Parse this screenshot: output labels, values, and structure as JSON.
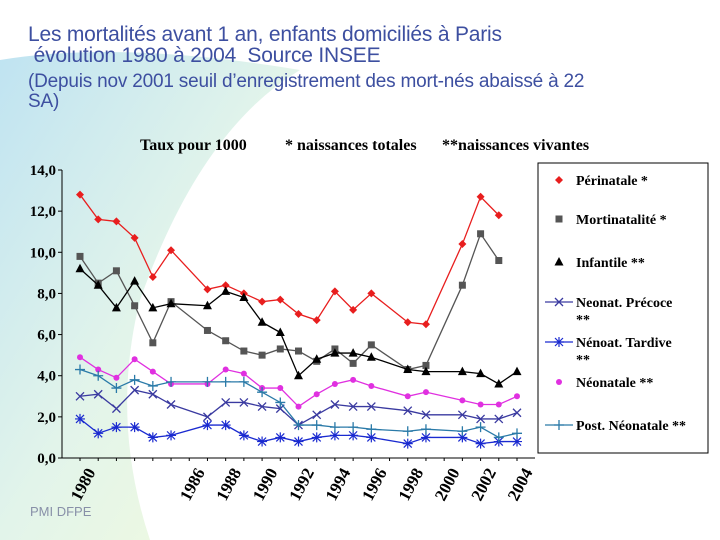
{
  "slide": {
    "title_line1": "Les mortalités avant 1 an, enfants domiciliés à Paris",
    "title_line2": " évolution 1980 à 2004  Source INSEE",
    "title_line3": "(Depuis nov 2001 seuil d’enregistrement des mort-nés abaissé à 22",
    "title_line4": "SA)",
    "footer": "PMI DFPE"
  },
  "chart_data": {
    "type": "line",
    "header_rate": "Taux pour 1000",
    "header_total": "* naissances totales",
    "header_live": "**naissances vivantes",
    "x": [
      1980,
      1981,
      1982,
      1983,
      1984,
      1985,
      1986,
      1987,
      1988,
      1989,
      1990,
      1991,
      1992,
      1993,
      1994,
      1995,
      1996,
      1997,
      1998,
      1999,
      2000,
      2001,
      2002,
      2003,
      2004
    ],
    "x_tick_labels": [
      "1980",
      "1986",
      "1988",
      "1990",
      "1992",
      "1994",
      "1996",
      "1998",
      "2000",
      "2002",
      "2004"
    ],
    "x_tick_values": [
      1980,
      1986,
      1988,
      1990,
      1992,
      1994,
      1996,
      1998,
      2000,
      2002,
      2004
    ],
    "ylim": [
      0,
      14
    ],
    "y_ticks": [
      "0,0",
      "2,0",
      "4,0",
      "6,0",
      "8,0",
      "10,0",
      "12,0",
      "14,0"
    ],
    "grid": false,
    "legend_position": "right",
    "series": [
      {
        "name": "Périnatale *",
        "color": "#e81e1e",
        "marker": "diamond",
        "values": [
          12.8,
          11.6,
          11.5,
          10.7,
          8.8,
          10.1,
          null,
          8.2,
          8.4,
          8.0,
          7.6,
          7.7,
          7.0,
          6.7,
          8.1,
          7.2,
          8.0,
          null,
          6.6,
          6.5,
          null,
          10.4,
          12.7,
          11.8,
          null
        ]
      },
      {
        "name": "Mortinatalité *",
        "color": "#555555",
        "marker": "square",
        "values": [
          9.8,
          8.5,
          9.1,
          7.4,
          5.6,
          7.6,
          null,
          6.2,
          5.7,
          5.2,
          5.0,
          5.3,
          5.2,
          4.7,
          5.3,
          4.6,
          5.5,
          null,
          4.3,
          4.5,
          null,
          8.4,
          10.9,
          9.6,
          null
        ]
      },
      {
        "name": "Infantile **",
        "color": "#000000",
        "marker": "triangle",
        "values": [
          9.2,
          8.4,
          7.3,
          8.6,
          7.3,
          7.5,
          null,
          7.4,
          8.1,
          7.8,
          6.6,
          6.1,
          4.0,
          4.8,
          5.1,
          5.1,
          4.9,
          null,
          4.3,
          4.2,
          null,
          4.2,
          4.1,
          3.6,
          4.2
        ]
      },
      {
        "name": "Neonat. Précoce **",
        "color": "#3a3aa0",
        "marker": "x",
        "values": [
          3.0,
          3.1,
          2.4,
          3.3,
          3.1,
          2.6,
          null,
          2.0,
          2.7,
          2.7,
          2.5,
          2.4,
          1.6,
          2.1,
          2.6,
          2.5,
          2.5,
          null,
          2.3,
          2.1,
          null,
          2.1,
          1.9,
          1.9,
          2.2
        ]
      },
      {
        "name": "Nénoat. Tardive **",
        "color": "#1a2ad0",
        "marker": "star",
        "values": [
          1.9,
          1.2,
          1.5,
          1.5,
          1.0,
          1.1,
          null,
          1.6,
          1.6,
          1.1,
          0.8,
          1.0,
          0.8,
          1.0,
          1.1,
          1.1,
          1.0,
          null,
          0.7,
          1.0,
          null,
          1.0,
          0.7,
          0.8,
          0.8
        ]
      },
      {
        "name": "Néonatale **",
        "color": "#e030e0",
        "marker": "circle",
        "values": [
          4.9,
          4.3,
          3.9,
          4.8,
          4.2,
          3.6,
          null,
          3.6,
          4.3,
          4.1,
          3.4,
          3.4,
          2.5,
          3.1,
          3.6,
          3.8,
          3.5,
          null,
          3.0,
          3.2,
          null,
          2.8,
          2.6,
          2.6,
          3.0
        ]
      },
      {
        "name": "Post. Néonatale **",
        "color": "#2a7aa8",
        "marker": "plus",
        "values": [
          4.3,
          4.0,
          3.4,
          3.8,
          3.5,
          3.7,
          null,
          3.7,
          3.7,
          3.7,
          3.2,
          2.7,
          1.6,
          1.6,
          1.5,
          1.5,
          1.4,
          null,
          1.3,
          1.4,
          null,
          1.3,
          1.5,
          1.0,
          1.2
        ]
      }
    ]
  }
}
